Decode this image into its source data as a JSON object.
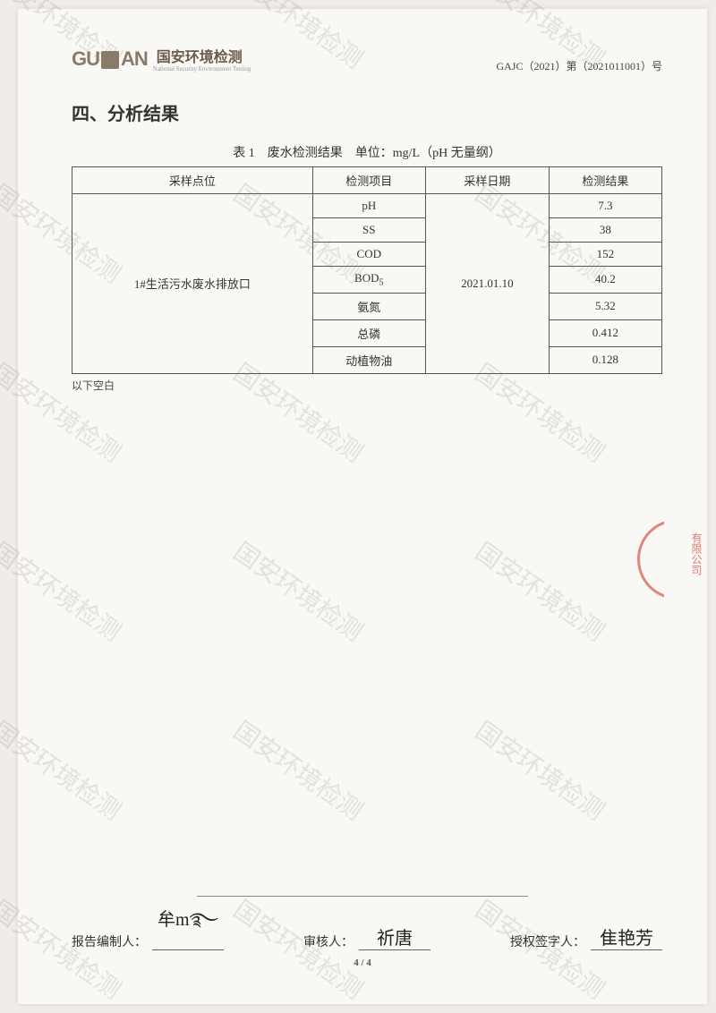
{
  "header": {
    "logo_text_1": "GU",
    "logo_text_2": "AN",
    "logo_cn": "国安环境检测",
    "logo_sub": "National Security Environment Testing",
    "doc_ref": "GAJC（2021）第（2021011001）号"
  },
  "section": {
    "title": "四、分析结果"
  },
  "table": {
    "caption": "表 1　废水检测结果　单位：mg/L（pH 无量纲）",
    "columns": [
      "采样点位",
      "检测项目",
      "采样日期",
      "检测结果"
    ],
    "sampling_point": "1#生活污水废水排放口",
    "sampling_date": "2021.01.10",
    "rows": [
      {
        "item": "pH",
        "result": "7.3"
      },
      {
        "item": "SS",
        "result": "38"
      },
      {
        "item": "COD",
        "result": "152"
      },
      {
        "item": "BOD",
        "item_sub": "5",
        "result": "40.2"
      },
      {
        "item": "氨氮",
        "result": "5.32"
      },
      {
        "item": "总磷",
        "result": "0.412"
      },
      {
        "item": "动植物油",
        "result": "0.128"
      }
    ],
    "below_blank": "以下空白"
  },
  "signatures": {
    "preparer_label": "报告编制人：",
    "preparer_sig": "牟m࿐",
    "reviewer_label": "审核人：",
    "reviewer_sig": "祈唐",
    "authorizer_label": "授权签字人：",
    "authorizer_sig": "隹艳芳"
  },
  "footer": {
    "page": "4 / 4"
  },
  "watermark_text": "国安环境检测",
  "seal_text": "有限公司"
}
